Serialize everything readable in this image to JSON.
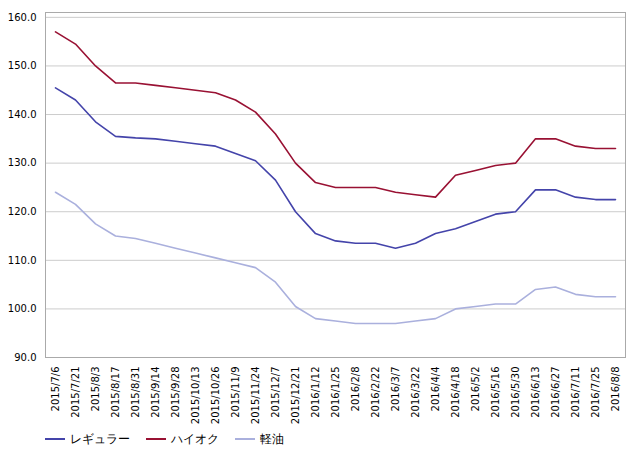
{
  "chart_data": {
    "type": "line",
    "categories": [
      "2015/7/6",
      "2015/7/21",
      "2015/8/3",
      "2015/8/17",
      "2015/8/31",
      "2015/9/14",
      "2015/9/28",
      "2015/10/13",
      "2015/10/26",
      "2015/11/9",
      "2015/11/24",
      "2015/12/7",
      "2015/12/21",
      "2016/1/12",
      "2016/1/25",
      "2016/2/8",
      "2016/2/22",
      "2016/3/7",
      "2016/3/22",
      "2016/4/4",
      "2016/4/18",
      "2016/5/2",
      "2016/5/16",
      "2016/5/30",
      "2016/6/13",
      "2016/6/27",
      "2016/7/11",
      "2016/7/25",
      "2016/8/8"
    ],
    "series": [
      {
        "name": "レギュラー",
        "color": "#4444aa",
        "values": [
          145.5,
          143.0,
          138.5,
          135.5,
          135.2,
          135.0,
          134.5,
          134.0,
          133.5,
          132.0,
          130.5,
          126.5,
          120.0,
          115.5,
          114.0,
          113.5,
          113.5,
          112.5,
          113.5,
          115.5,
          116.5,
          118.0,
          119.5,
          120.0,
          124.5,
          124.5,
          123.0,
          122.5,
          122.5
        ]
      },
      {
        "name": "ハイオク",
        "color": "#991133",
        "values": [
          157.0,
          154.5,
          150.0,
          146.5,
          146.5,
          146.0,
          145.5,
          145.0,
          144.5,
          143.0,
          140.5,
          136.0,
          130.0,
          126.0,
          125.0,
          125.0,
          125.0,
          124.0,
          123.5,
          123.0,
          127.5,
          128.5,
          129.5,
          130.0,
          135.0,
          135.0,
          133.5,
          133.0,
          133.0
        ]
      },
      {
        "name": "軽油",
        "color": "#aab0dd",
        "values": [
          124.0,
          121.5,
          117.5,
          115.0,
          114.5,
          113.5,
          112.5,
          111.5,
          110.5,
          109.5,
          108.5,
          105.5,
          100.5,
          98.0,
          97.5,
          97.0,
          97.0,
          97.0,
          97.5,
          98.0,
          100.0,
          100.5,
          101.0,
          101.0,
          104.0,
          104.5,
          103.0,
          102.5,
          102.5
        ]
      }
    ],
    "ylim": [
      90.0,
      161.0
    ],
    "yticks": [
      {
        "value": 90,
        "label": "90.0"
      },
      {
        "value": 100,
        "label": "100.0"
      },
      {
        "value": 110,
        "label": "110.0"
      },
      {
        "value": 120,
        "label": "120.0"
      },
      {
        "value": 130,
        "label": "130.0"
      },
      {
        "value": 140,
        "label": "140.0"
      },
      {
        "value": 150,
        "label": "150.0"
      },
      {
        "value": 160,
        "label": "160.0"
      }
    ],
    "grid": true,
    "legend": "lower left"
  }
}
